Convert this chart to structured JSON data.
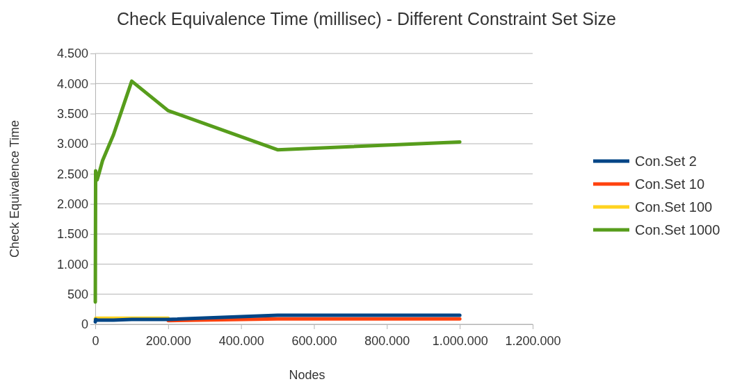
{
  "chart_data": {
    "type": "line",
    "title": "Check Equivalence Time (millisec) - Different Constraint Set Size",
    "xlabel": "Nodes",
    "ylabel": "Check Equivalence Time",
    "x": [
      100,
      1000,
      5000,
      10000,
      20000,
      50000,
      100000,
      200000,
      500000,
      1000000
    ],
    "series": [
      {
        "name": "Con.Set 2",
        "color": "#004586",
        "values": [
          40,
          80,
          70,
          70,
          70,
          70,
          80,
          80,
          150,
          150
        ]
      },
      {
        "name": "Con.Set 10",
        "color": "#ff420e",
        "values": [
          null,
          null,
          null,
          null,
          null,
          null,
          null,
          60,
          90,
          90
        ]
      },
      {
        "name": "Con.Set 100",
        "color": "#ffd320",
        "values": [
          90,
          100,
          100,
          100,
          100,
          100,
          100,
          100,
          null,
          null
        ]
      },
      {
        "name": "Con.Set 1000",
        "color": "#579d1c",
        "values": [
          370,
          2550,
          2400,
          2500,
          2720,
          3150,
          4040,
          3550,
          2900,
          3030
        ]
      }
    ],
    "xlim": [
      0,
      1200000
    ],
    "xticks": [
      0,
      {
        "value": 200000,
        "label": "200.000"
      },
      {
        "value": 400000,
        "label": "400.000"
      },
      {
        "value": 600000,
        "label": "600.000"
      },
      {
        "value": 800000,
        "label": "800.000"
      },
      {
        "value": 1000000,
        "label": "1.000.000"
      },
      {
        "value": 1200000,
        "label": "1.200.000"
      }
    ],
    "ylim": [
      0,
      4500
    ],
    "yticks": [
      0,
      500,
      {
        "value": 1000,
        "label": "1.000"
      },
      {
        "value": 1500,
        "label": "1.500"
      },
      {
        "value": 2000,
        "label": "2.000"
      },
      {
        "value": 2500,
        "label": "2.500"
      },
      {
        "value": 3000,
        "label": "3.000"
      },
      {
        "value": 3500,
        "label": "3.500"
      },
      {
        "value": 4000,
        "label": "4.000"
      },
      {
        "value": 4500,
        "label": "4.500"
      }
    ],
    "grid": "y",
    "legend": "right",
    "marker": "none",
    "line_style": "solid"
  }
}
